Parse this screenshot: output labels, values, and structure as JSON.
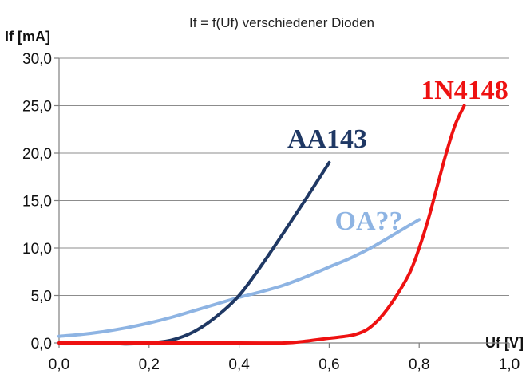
{
  "chart_data": {
    "type": "line",
    "title": "If = f(Uf) verschiedener Dioden",
    "xlabel": "Uf [V]",
    "ylabel": "If [mA]",
    "xlim": [
      0,
      1.0
    ],
    "ylim": [
      0,
      30.0
    ],
    "x_ticks": [
      "0,0",
      "0,2",
      "0,4",
      "0,6",
      "0,8",
      "1,0"
    ],
    "y_ticks": [
      "0,0",
      "5,0",
      "10,0",
      "15,0",
      "20,0",
      "25,0",
      "30,0"
    ],
    "x_tick_values": [
      0,
      0.2,
      0.4,
      0.6,
      0.8,
      1.0
    ],
    "y_tick_values": [
      0,
      5,
      10,
      15,
      20,
      25,
      30
    ],
    "grid": "horizontal",
    "series": [
      {
        "name": "AA143",
        "color": "#1f3864",
        "x": [
          0.0,
          0.1,
          0.15,
          0.2,
          0.25,
          0.3,
          0.35,
          0.4,
          0.45,
          0.5,
          0.55,
          0.6
        ],
        "y": [
          0.0,
          0.0,
          -0.1,
          0.0,
          0.3,
          1.2,
          2.8,
          5.0,
          8.2,
          11.7,
          15.3,
          19.0
        ]
      },
      {
        "name": "OA??",
        "color": "#8eb4e3",
        "x": [
          0.0,
          0.05,
          0.1,
          0.15,
          0.2,
          0.25,
          0.3,
          0.35,
          0.4,
          0.45,
          0.5,
          0.55,
          0.6,
          0.65,
          0.7,
          0.75,
          0.8
        ],
        "y": [
          0.7,
          0.9,
          1.2,
          1.6,
          2.1,
          2.7,
          3.4,
          4.1,
          4.8,
          5.4,
          6.1,
          7.0,
          8.0,
          9.0,
          10.2,
          11.6,
          13.0
        ]
      },
      {
        "name": "1N4148",
        "color": "#ee1111",
        "x": [
          0.0,
          0.2,
          0.4,
          0.5,
          0.55,
          0.6,
          0.65,
          0.68,
          0.7,
          0.72,
          0.75,
          0.78,
          0.8,
          0.82,
          0.84,
          0.86,
          0.88,
          0.9
        ],
        "y": [
          0.0,
          0.0,
          0.0,
          0.0,
          0.2,
          0.5,
          0.8,
          1.3,
          2.0,
          3.0,
          5.0,
          7.5,
          10.0,
          13.0,
          16.5,
          20.0,
          23.0,
          25.0
        ]
      }
    ]
  }
}
